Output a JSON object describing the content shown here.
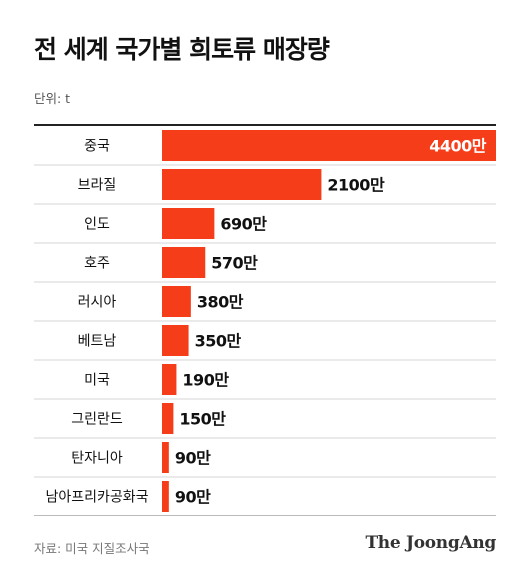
{
  "chart_data": {
    "type": "bar",
    "orientation": "horizontal",
    "title": "전 세계 국가별 희토류 매장량",
    "unit_label": "단위: t",
    "categories": [
      "중국",
      "브라질",
      "인도",
      "호주",
      "러시아",
      "베트남",
      "미국",
      "그린란드",
      "탄자니아",
      "남아프리카공화국"
    ],
    "values": [
      44000000,
      21000000,
      6900000,
      5700000,
      3800000,
      3500000,
      1900000,
      1500000,
      900000,
      900000
    ],
    "value_labels": [
      "4400만",
      "2100만",
      "690만",
      "570만",
      "380만",
      "350만",
      "190만",
      "150만",
      "90만",
      "90만"
    ],
    "xlim": [
      0,
      44000000
    ],
    "grid": false,
    "colors": {
      "bar": "#f53d1a",
      "value_inside": "#ffffff",
      "value_outside": "#111111"
    }
  },
  "footer": {
    "source": "자료: 미국 지질조사국",
    "brand": "The JoongAng"
  }
}
